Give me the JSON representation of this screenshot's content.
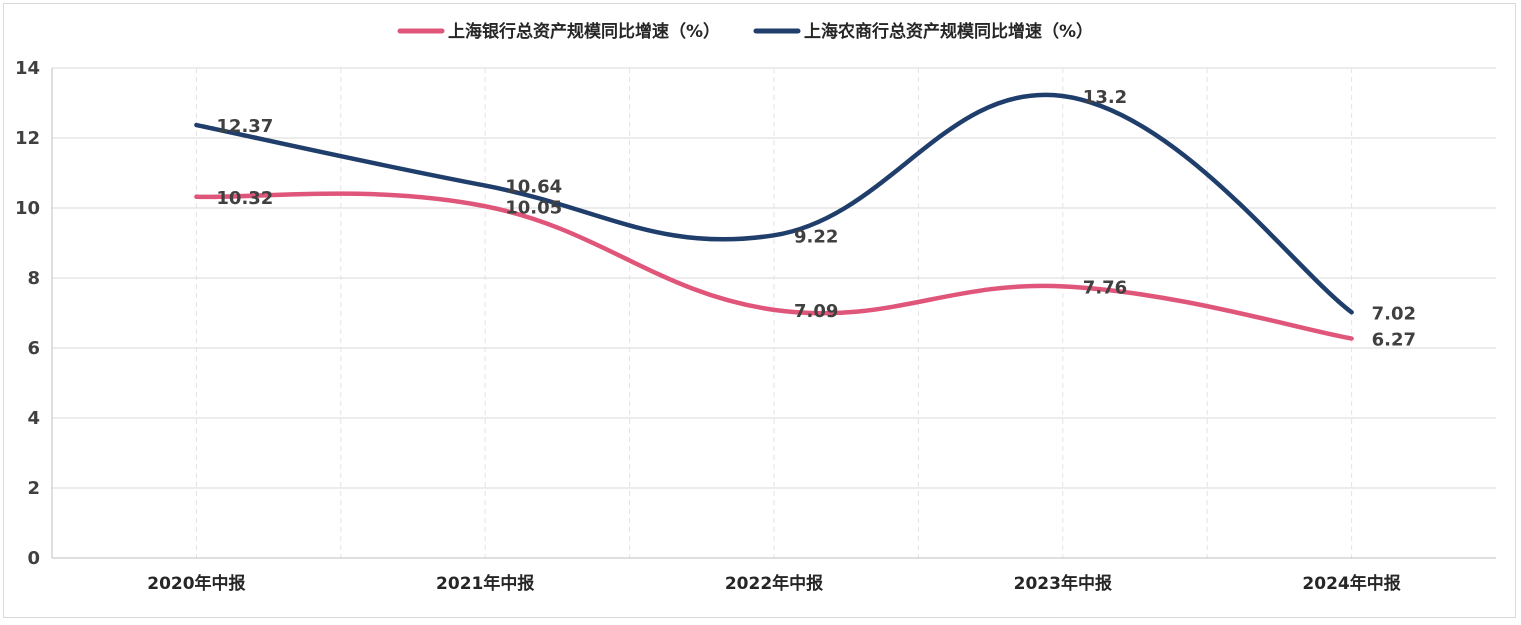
{
  "chart_data": {
    "type": "line",
    "smooth": true,
    "categories": [
      "2020年中报",
      "2021年中报",
      "2022年中报",
      "2023年中报",
      "2024年中报"
    ],
    "series": [
      {
        "name": "上海银行总资产规模同比增速（%）",
        "values": [
          10.32,
          10.05,
          7.09,
          7.76,
          6.27
        ],
        "color": "#e0567a"
      },
      {
        "name": "上海农商行总资产规模同比增速（%）",
        "values": [
          12.37,
          10.64,
          9.22,
          13.2,
          7.02
        ],
        "color": "#1f3e6b"
      }
    ],
    "data_labels": [
      [
        "10.32",
        "10.05",
        "7.09",
        "7.76",
        "6.27"
      ],
      [
        "12.37",
        "10.64",
        "9.22",
        "13.2",
        "7.02"
      ]
    ],
    "y_ticks": [
      "0",
      "2",
      "4",
      "6",
      "8",
      "10",
      "12",
      "14"
    ],
    "ylim": [
      0,
      14
    ],
    "grid": {
      "horizontal": true,
      "vertical_dashed": true
    },
    "legend_position": "top-center",
    "colors": {
      "gridline": "#d9d9d9",
      "axis": "#bfbfbf"
    }
  }
}
